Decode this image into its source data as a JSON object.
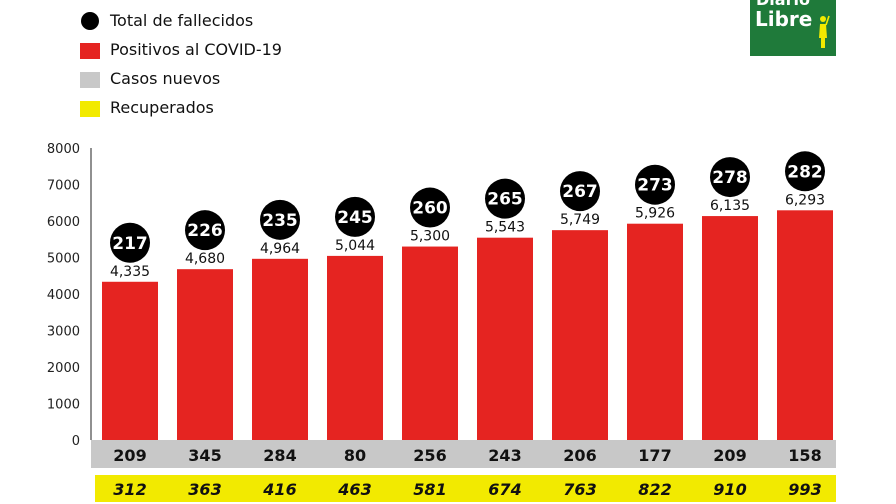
{
  "legend": [
    {
      "label": "Total de fallecidos",
      "color": "#000000",
      "shape": "circle"
    },
    {
      "label": "Positivos al COVID-19",
      "color": "#e52421",
      "shape": "square"
    },
    {
      "label": "Casos nuevos",
      "color": "#c8c8c8",
      "shape": "square"
    },
    {
      "label": "Recuperados",
      "color": "#f2ea00",
      "shape": "square"
    }
  ],
  "logo": {
    "line1": "Diario",
    "line2": "Libre",
    "color": "#1f7a3a"
  },
  "colors": {
    "bars": "#e52421",
    "deaths": "#000000",
    "new_cases_band": "#c8c8c8",
    "recovered_band": "#f2ea00"
  },
  "chart_data": {
    "type": "bar",
    "ylim": [
      0,
      8000
    ],
    "yticks": [
      "0",
      "1000",
      "2000",
      "3000",
      "4000",
      "5000",
      "6000",
      "7000",
      "8000"
    ],
    "values": [
      4335,
      4680,
      4964,
      5044,
      5300,
      5543,
      5749,
      5926,
      6135,
      6293
    ],
    "value_labels": [
      "4,335",
      "4,680",
      "4,964",
      "5,044",
      "5,300",
      "5,543",
      "5,749",
      "5,926",
      "6,135",
      "6,293"
    ],
    "deaths": [
      "217",
      "226",
      "235",
      "245",
      "260",
      "265",
      "267",
      "273",
      "278",
      "282"
    ],
    "new_cases": [
      "209",
      "345",
      "284",
      "80",
      "256",
      "243",
      "206",
      "177",
      "209",
      "158"
    ],
    "recovered": [
      "312",
      "363",
      "416",
      "463",
      "581",
      "674",
      "763",
      "822",
      "910",
      "993"
    ],
    "grid": false,
    "legend_position": "top-left"
  }
}
